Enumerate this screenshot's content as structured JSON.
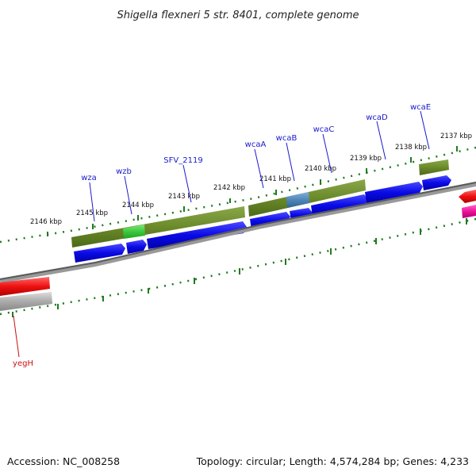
{
  "title": "Shigella flexneri 5 str. 8401, complete genome",
  "footer": {
    "accession": "Accession: NC_008258",
    "topology": "Topology: circular; Length: 4,574,284 bp; Genes: 4,233"
  },
  "scale_labels": [
    "2146 kbp",
    "2145 kbp",
    "2144 kbp",
    "2143 kbp",
    "2142 kbp",
    "2141 kbp",
    "2140 kbp",
    "2139 kbp",
    "2138 kbp",
    "2137 kbp"
  ],
  "gene_labels": [
    "wza",
    "wzb",
    "SFV_2119",
    "wcaA",
    "wcaB",
    "wcaC",
    "wcaD",
    "wcaE",
    "yegH"
  ],
  "colors": {
    "label_blue": "#1a1acc",
    "label_red": "#cc1111",
    "cds_blue": "#0a0ae6",
    "olive": "#6b8a2a",
    "green_highlight": "#3cc83c",
    "steelblue_highlight": "#4f86b8",
    "red": "#ee1111",
    "magenta": "#ee1199",
    "gray": "#aaaaaa",
    "backbone": "#777777",
    "tick_green": "#1f7a1f"
  }
}
